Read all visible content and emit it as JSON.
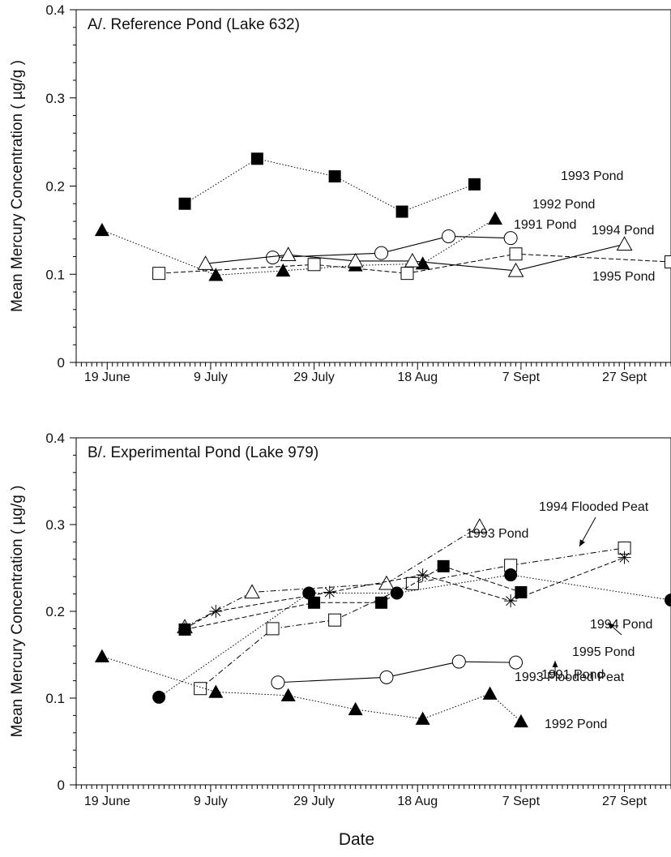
{
  "chart_data": [
    {
      "type": "line",
      "title": "A/. Reference Pond (Lake 632)",
      "xlabel": "Date",
      "ylabel": "Mean Mercury Concentration ( µg/g )",
      "ylim": [
        0,
        0.4
      ],
      "yticks": [
        "0",
        "0.1",
        "0.2",
        "0.3",
        "0.4"
      ],
      "xticks": [
        {
          "label": "19 June",
          "day": 0
        },
        {
          "label": "9 July",
          "day": 20
        },
        {
          "label": "29 July",
          "day": 40
        },
        {
          "label": "18 Aug",
          "day": 60
        },
        {
          "label": "7 Sept",
          "day": 80
        },
        {
          "label": "27 Sept",
          "day": 100
        }
      ],
      "xlim_days": [
        -6,
        109
      ],
      "grid": false,
      "series": [
        {
          "name": "1993 Pond",
          "marker": "square-filled",
          "line": "dotted",
          "x": [
            15,
            29,
            44,
            57,
            71
          ],
          "y": [
            0.18,
            0.231,
            0.211,
            0.171,
            0.202
          ]
        },
        {
          "name": "1992 Pond",
          "marker": "triangle-filled",
          "line": "dotted",
          "x": [
            -1,
            21,
            34,
            48,
            61,
            75
          ],
          "y": [
            0.15,
            0.099,
            0.104,
            0.11,
            0.112,
            0.163
          ]
        },
        {
          "name": "1991 Pond",
          "marker": "circle-open",
          "line": "solid",
          "x": [
            32,
            53,
            66,
            78
          ],
          "y": [
            0.119,
            0.124,
            0.143,
            0.141
          ]
        },
        {
          "name": "1994 Pond",
          "marker": "triangle-open",
          "line": "solid",
          "x": [
            19,
            35,
            48,
            59,
            79,
            100
          ],
          "y": [
            0.112,
            0.122,
            0.115,
            0.115,
            0.104,
            0.134
          ]
        },
        {
          "name": "1995 Pond",
          "marker": "square-open",
          "line": "dashed",
          "x": [
            10,
            40,
            58,
            79,
            109
          ],
          "y": [
            0.101,
            0.111,
            0.101,
            0.123,
            0.114
          ]
        }
      ],
      "annotations": [
        "1993 Pond",
        "1992 Pond",
        "1991 Pond",
        "1994 Pond",
        "1995 Pond"
      ]
    },
    {
      "type": "line",
      "title": "B/. Experimental Pond (Lake 979)",
      "xlabel": "Date",
      "ylabel": "Mean Mercury Concentration ( µg/g )",
      "ylim": [
        0,
        0.4
      ],
      "yticks": [
        "0",
        "0.1",
        "0.2",
        "0.3",
        "0.4"
      ],
      "xticks": [
        {
          "label": "19 June",
          "day": 0
        },
        {
          "label": "9 July",
          "day": 20
        },
        {
          "label": "29 July",
          "day": 40
        },
        {
          "label": "18 Aug",
          "day": 60
        },
        {
          "label": "7 Sept",
          "day": 80
        },
        {
          "label": "27 Sept",
          "day": 100
        }
      ],
      "xlim_days": [
        -6,
        109
      ],
      "grid": false,
      "series": [
        {
          "name": "1993 Pond",
          "marker": "triangle-open",
          "line": "dashdot",
          "x": [
            15,
            28,
            54,
            72
          ],
          "y": [
            0.182,
            0.222,
            0.232,
            0.298
          ]
        },
        {
          "name": "1994 Flooded Peat",
          "marker": "square-open",
          "line": "dashdot",
          "x": [
            18,
            32,
            44,
            59,
            78,
            100
          ],
          "y": [
            0.111,
            0.18,
            0.19,
            0.232,
            0.253,
            0.273
          ]
        },
        {
          "name": "1994 Pond",
          "marker": "asterisk",
          "line": "dashed",
          "x": [
            15,
            21,
            43,
            61,
            78,
            100
          ],
          "y": [
            0.18,
            0.2,
            0.222,
            0.242,
            0.212,
            0.262
          ]
        },
        {
          "name": "1995 Pond",
          "marker": "circle-filled",
          "line": "dotted",
          "x": [
            10,
            39,
            56,
            78,
            109
          ],
          "y": [
            0.101,
            0.221,
            0.221,
            0.242,
            0.213
          ]
        },
        {
          "name": "1993 Flooded Peat",
          "marker": "square-filled",
          "line": "dashed",
          "x": [
            15,
            40,
            53,
            65,
            80
          ],
          "y": [
            0.179,
            0.21,
            0.21,
            0.252,
            0.222
          ]
        },
        {
          "name": "1991 Pond",
          "marker": "circle-open",
          "line": "solid",
          "x": [
            33,
            54,
            68,
            79
          ],
          "y": [
            0.118,
            0.124,
            0.142,
            0.141
          ]
        },
        {
          "name": "1992 Pond",
          "marker": "triangle-filled",
          "line": "dotted",
          "x": [
            -1,
            21,
            35,
            48,
            61,
            74,
            80
          ],
          "y": [
            0.148,
            0.107,
            0.103,
            0.087,
            0.076,
            0.105,
            0.073
          ]
        }
      ],
      "annotations": [
        "1994 Flooded Peat",
        "1993 Pond",
        "1994 Pond",
        "1995 Pond",
        "1993 Flooded Peat",
        "1991 Pond",
        "1992 Pond"
      ]
    }
  ]
}
